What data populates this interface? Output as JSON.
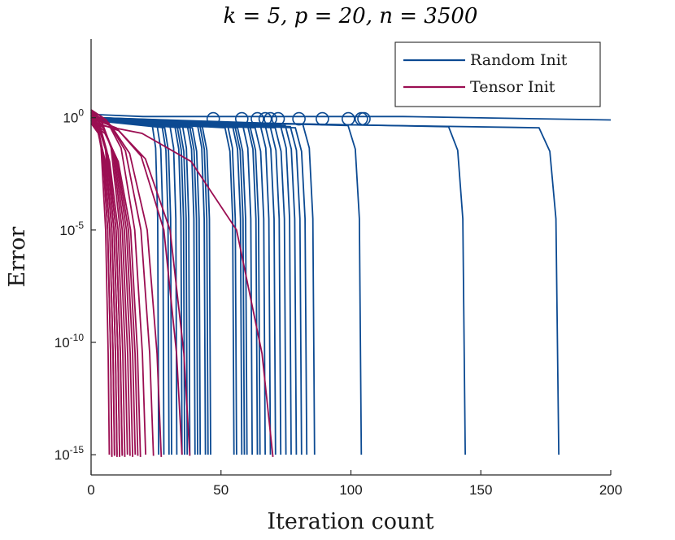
{
  "chart_data": {
    "type": "line",
    "title": "k = 5, p = 20, n = 3500",
    "xlabel": "Iteration count",
    "ylabel": "Error",
    "xlim": [
      0,
      200
    ],
    "ylim_log10": [
      -15.9,
      3.5
    ],
    "y_scale": "log",
    "x_ticks": [
      {
        "value": 0,
        "label": "0"
      },
      {
        "value": 50,
        "label": "50"
      },
      {
        "value": 100,
        "label": "100"
      },
      {
        "value": 150,
        "label": "150"
      },
      {
        "value": 200,
        "label": "200"
      }
    ],
    "y_ticks": [
      {
        "log10": 0,
        "base": "10",
        "exp": "0"
      },
      {
        "log10": -5,
        "base": "10",
        "exp": "-5"
      },
      {
        "log10": -10,
        "base": "10",
        "exp": "-10"
      },
      {
        "log10": -15,
        "base": "10",
        "exp": "-15"
      }
    ],
    "legend": {
      "position": "top-right",
      "entries": [
        {
          "label": "Random Init",
          "color": "#0c4a92"
        },
        {
          "label": "Tensor Init",
          "color": "#9b0e52"
        }
      ]
    },
    "colors": {
      "random": "#0c4a92",
      "tensor": "#9b0e52"
    },
    "random_init_runs": {
      "drop_iterations": [
        26,
        28,
        30,
        31,
        33,
        35,
        36,
        37,
        38,
        40,
        41,
        42,
        44,
        45,
        46,
        55,
        56,
        58,
        59,
        60,
        62,
        64,
        65,
        67,
        69,
        71,
        73,
        75,
        77,
        79,
        81,
        83,
        86,
        104,
        144,
        180
      ],
      "circled_iterations": [
        47,
        58,
        64,
        67,
        69,
        72,
        80,
        89,
        99,
        104,
        105
      ],
      "nonconverged_final_error_log10": -0.1
    },
    "tensor_init_runs": {
      "drop_iterations": [
        7,
        8,
        8,
        9,
        9,
        10,
        10,
        11,
        11,
        12,
        12,
        13,
        14,
        15,
        16,
        17,
        18,
        19,
        21,
        24,
        27,
        35,
        38,
        70
      ]
    },
    "converged_error_log10": -15
  }
}
